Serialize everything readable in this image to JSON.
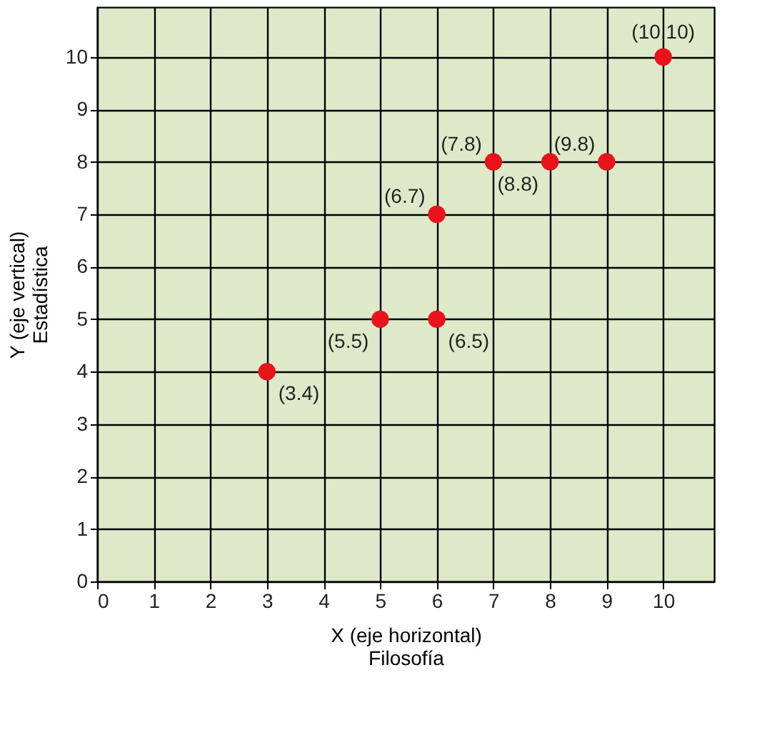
{
  "chart_data": {
    "type": "scatter",
    "x": [
      3,
      5,
      6,
      6,
      7,
      8,
      9,
      10
    ],
    "values": [
      4,
      5,
      5,
      7,
      8,
      8,
      8,
      10
    ],
    "color": "#e8141b",
    "marker": "circle",
    "xlabel": "X (eje horizontal)\nFilosofía",
    "ylabel": "Y (eje vertical)\nEstadística",
    "xlim": [
      0,
      10.9
    ],
    "ylim": [
      0,
      10.95
    ],
    "xticks": [
      0,
      1,
      2,
      3,
      4,
      5,
      6,
      7,
      8,
      9,
      10
    ],
    "yticks": [
      0,
      1,
      2,
      3,
      4,
      5,
      6,
      7,
      8,
      9,
      10
    ],
    "grid": true,
    "annotations": [
      {
        "text": "(3.4)",
        "x": 3,
        "y": 4
      },
      {
        "text": "(5.5)",
        "x": 5,
        "y": 5
      },
      {
        "text": "(6.5)",
        "x": 6,
        "y": 5
      },
      {
        "text": "(6.7)",
        "x": 6,
        "y": 7
      },
      {
        "text": "(7.8)",
        "x": 7,
        "y": 8
      },
      {
        "text": "(8.8)",
        "x": 8,
        "y": 8
      },
      {
        "text": "(9.8)",
        "x": 9,
        "y": 8
      },
      {
        "text": "(10.10)",
        "x": 10,
        "y": 10
      }
    ]
  }
}
